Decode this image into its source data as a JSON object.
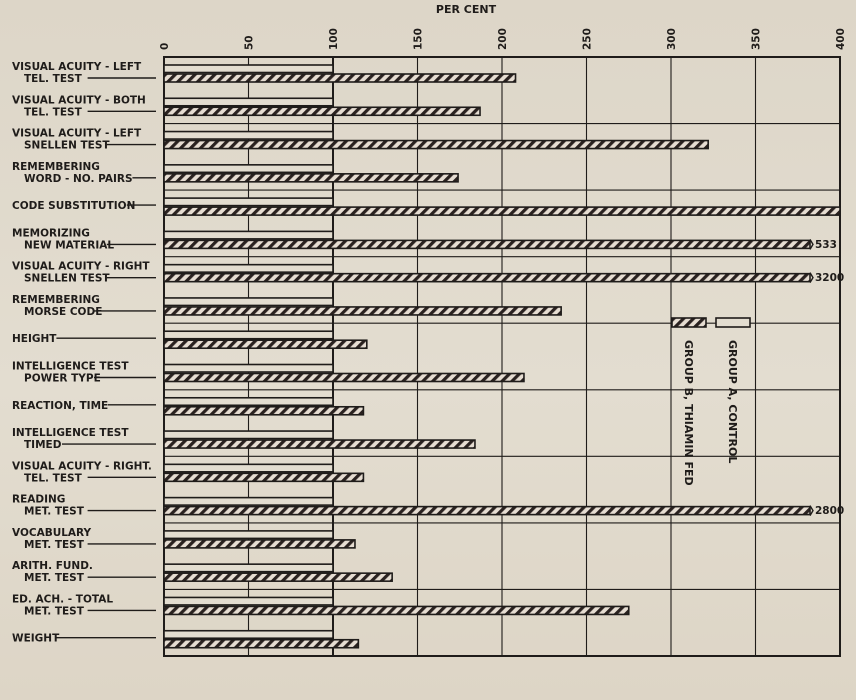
{
  "chart_data": {
    "type": "bar",
    "title": "PER CENT",
    "xlim": [
      0,
      400
    ],
    "x_ticks": [
      "0",
      "50",
      "100",
      "150",
      "200",
      "250",
      "300",
      "350",
      "400"
    ],
    "grid": true,
    "legend_position": "right, vertical",
    "colors": {
      "ink": "#1f1c1a",
      "paper": "#e3ddd0",
      "stripe": "#c9a39a"
    },
    "categories": [
      [
        "VISUAL ACUITY - LEFT",
        "TEL. TEST"
      ],
      [
        "VISUAL ACUITY - BOTH",
        "TEL. TEST"
      ],
      [
        "VISUAL ACUITY - LEFT",
        "SNELLEN TEST"
      ],
      [
        "REMEMBERING",
        "WORD - NO. PAIRS"
      ],
      [
        "CODE SUBSTITUTION"
      ],
      [
        "MEMORIZING",
        "NEW MATERIAL"
      ],
      [
        "VISUAL ACUITY - RIGHT",
        "SNELLEN TEST"
      ],
      [
        "REMEMBERING",
        "MORSE CODE"
      ],
      [
        "HEIGHT"
      ],
      [
        "INTELLIGENCE TEST",
        "POWER TYPE"
      ],
      [
        "REACTION, TIME"
      ],
      [
        "INTELLIGENCE TEST",
        "TIMED"
      ],
      [
        "VISUAL ACUITY - RIGHT.",
        "TEL. TEST"
      ],
      [
        "READING",
        "MET. TEST"
      ],
      [
        "VOCABULARY",
        "MET. TEST"
      ],
      [
        "ARITH. FUND.",
        "MET. TEST"
      ],
      [
        "ED. ACH. - TOTAL",
        "MET. TEST"
      ],
      [
        "WEIGHT"
      ]
    ],
    "series": [
      {
        "name": "GROUP A, CONTROL",
        "pattern": "plain",
        "values": [
          100,
          100,
          100,
          100,
          100,
          100,
          100,
          100,
          100,
          100,
          100,
          100,
          100,
          100,
          100,
          100,
          100,
          100
        ]
      },
      {
        "name": "GROUP B, THIAMIN FED",
        "pattern": "hatched",
        "values": [
          208,
          187,
          322,
          174,
          400,
          533,
          3200,
          235,
          120,
          213,
          118,
          184,
          118,
          2800,
          113,
          135,
          275,
          115
        ],
        "value_labels": [
          "",
          "",
          "",
          "",
          "",
          "533",
          "3200",
          "",
          "",
          "",
          "",
          "",
          "",
          "2800",
          "",
          "",
          "",
          ""
        ]
      }
    ]
  }
}
